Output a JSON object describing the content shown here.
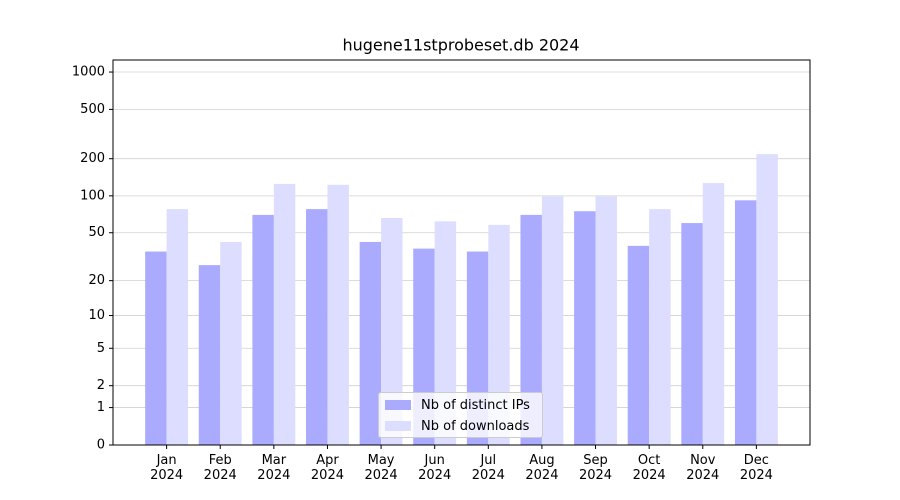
{
  "chart_data": {
    "type": "bar",
    "title": "hugene11stprobeset.db 2024",
    "categories": [
      "Jan 2024",
      "Feb 2024",
      "Mar 2024",
      "Apr 2024",
      "May 2024",
      "Jun 2024",
      "Jul 2024",
      "Aug 2024",
      "Sep 2024",
      "Oct 2024",
      "Nov 2024",
      "Dec 2024"
    ],
    "series": [
      {
        "name": "Nb of distinct IPs",
        "color": "#aaaaff",
        "values": [
          35,
          27,
          70,
          78,
          42,
          37,
          35,
          70,
          75,
          39,
          60,
          92
        ]
      },
      {
        "name": "Nb of downloads",
        "color": "#ddddff",
        "values": [
          78,
          42,
          125,
          123,
          66,
          62,
          58,
          99,
          99,
          78,
          127,
          218
        ]
      }
    ],
    "yscale": "log1p",
    "ylim": [
      0,
      1250
    ],
    "yticks": [
      0,
      1,
      2,
      5,
      10,
      20,
      50,
      100,
      200,
      500,
      1000
    ],
    "grid": true,
    "legend": "lower center"
  }
}
